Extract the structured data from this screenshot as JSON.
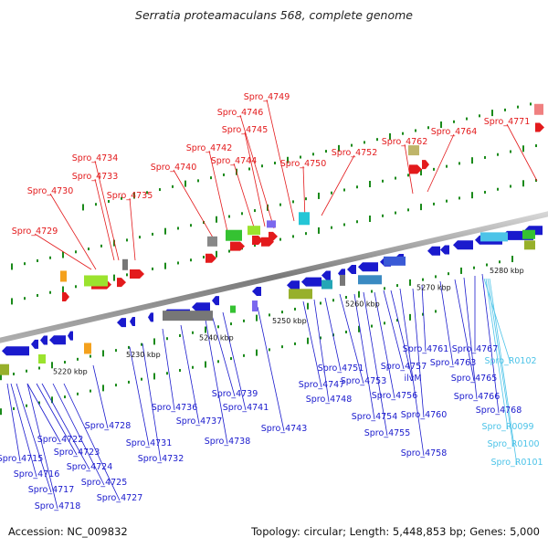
{
  "title": "Serratia proteamaculans 568, complete genome",
  "footer": {
    "accession": "Accession: NC_009832",
    "topology": "Topology: circular; Length: 5,448,853 bp; Genes: 5,000"
  },
  "colors": {
    "forward_label": "#e31a1c",
    "reverse_label": "#1a1acd",
    "rna_label": "#4cc3e8",
    "backbone": "#8c8c8c",
    "tick": "#1a8a1a"
  },
  "scale_labels": [
    "5220 kbp",
    "5230 kbp",
    "5240 kbp",
    "5250 kbp",
    "5260 kbp",
    "5270 kbp",
    "5280 kbp"
  ],
  "forward_labels": [
    "Spro_4729",
    "Spro_4730",
    "Spro_4733",
    "Spro_4734",
    "Spro_4735",
    "Spro_4740",
    "Spro_4742",
    "Spro_4744",
    "Spro_4745",
    "Spro_4746",
    "Spro_4749",
    "Spro_4750",
    "Spro_4752",
    "Spro_4762",
    "Spro_4764",
    "Spro_4771"
  ],
  "reverse_labels": [
    "Spro_4715",
    "Spro_4716",
    "Spro_4717",
    "Spro_4718",
    "Spro_4722",
    "Spro_4723",
    "Spro_4724",
    "Spro_4725",
    "Spro_4727",
    "Spro_4728",
    "Spro_4731",
    "Spro_4732",
    "Spro_4736",
    "Spro_4737",
    "Spro_4738",
    "Spro_4739",
    "Spro_4741",
    "Spro_4743",
    "Spro_4747",
    "Spro_4748",
    "Spro_4751",
    "Spro_4753",
    "Spro_4754",
    "Spro_4755",
    "Spro_4756",
    "Spro_4757",
    "ilvM",
    "Spro_4758",
    "Spro_4760",
    "Spro_4761",
    "Spro_4763",
    "Spro_4765",
    "Spro_4766",
    "Spro_4767",
    "Spro_4768"
  ],
  "rna_labels": [
    "Spro_R0102",
    "Spro_R0099",
    "Spro_R0100",
    "Spro_R0101"
  ]
}
